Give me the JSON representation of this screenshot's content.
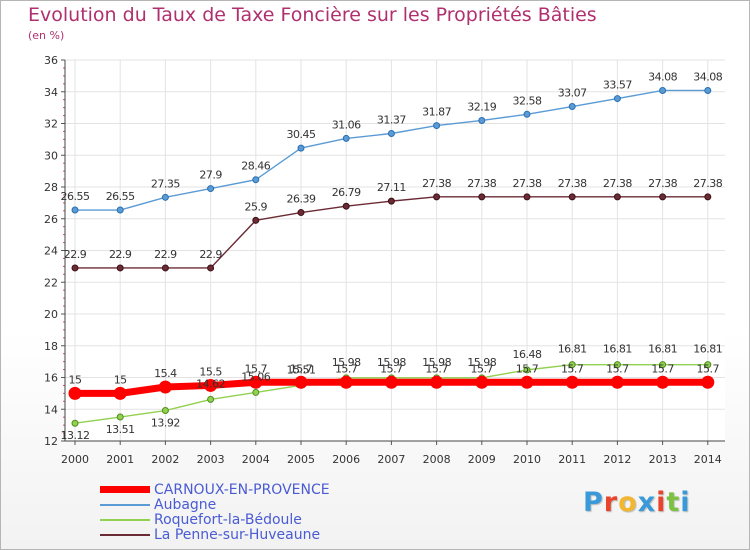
{
  "header": {
    "title": "Evolution du Taux de Taxe Foncière sur les Propriétés Bâties",
    "unit": "(en %)"
  },
  "logo": {
    "text": "Proxiti",
    "letter_colors": [
      "#3a9ad9",
      "#e8452c",
      "#f2b630",
      "#3a9ad9",
      "#e8452c",
      "#7bc142",
      "#3a9ad9"
    ]
  },
  "chart_data": {
    "type": "line",
    "x": [
      "2000",
      "2001",
      "2002",
      "2003",
      "2004",
      "2005",
      "2006",
      "2007",
      "2008",
      "2009",
      "2010",
      "2011",
      "2012",
      "2013",
      "2014"
    ],
    "ylim": [
      12,
      36
    ],
    "yticks": [
      "12",
      "14",
      "16",
      "18",
      "20",
      "22",
      "24",
      "26",
      "28",
      "30",
      "32",
      "34",
      "36"
    ],
    "grid": true,
    "legend_position": "bottom-left",
    "series": [
      {
        "name": "CARNOUX-EN-PROVENCE",
        "color": "#ff0000",
        "values": [
          15,
          15,
          15.4,
          15.5,
          15.7,
          15.7,
          15.7,
          15.7,
          15.7,
          15.7,
          15.7,
          15.7,
          15.7,
          15.7,
          15.7
        ],
        "labels": [
          "15",
          "15",
          "15.4",
          "15.5",
          "15.7",
          "15.7",
          "15.7",
          "15.7",
          "15.7",
          "15.7",
          "15.7",
          "15.7",
          "15.7",
          "15.7",
          "15.7"
        ]
      },
      {
        "name": "Aubagne",
        "color": "#5b9bd5",
        "values": [
          26.55,
          26.55,
          27.35,
          27.9,
          28.46,
          30.45,
          31.06,
          31.37,
          31.87,
          32.19,
          32.58,
          33.07,
          33.57,
          34.08,
          34.08
        ],
        "labels": [
          "26.55",
          "26.55",
          "27.35",
          "27.9",
          "28.46",
          "30.45",
          "31.06",
          "31.37",
          "31.87",
          "32.19",
          "32.58",
          "33.07",
          "33.57",
          "34.08",
          "34.08"
        ]
      },
      {
        "name": "Roquefort-la-Bédoule",
        "color": "#92d050",
        "values": [
          13.12,
          13.51,
          13.92,
          14.62,
          15.06,
          15.51,
          15.98,
          15.98,
          15.98,
          15.98,
          16.48,
          16.81,
          16.81,
          16.81,
          16.81
        ],
        "labels": [
          "13.12",
          "13.51",
          "13.92",
          "14.62",
          "15.06",
          "15.51",
          "15.98",
          "15.98",
          "15.98",
          "15.98",
          "16.48",
          "16.81",
          "16.81",
          "16.81",
          "16.81"
        ]
      },
      {
        "name": "La Penne-sur-Huveaune",
        "color": "#6b2b35",
        "values": [
          22.9,
          22.9,
          22.9,
          22.9,
          25.9,
          26.39,
          26.79,
          27.11,
          27.38,
          27.38,
          27.38,
          27.38,
          27.38,
          27.38,
          27.38
        ],
        "labels": [
          "22.9",
          "22.9",
          "22.9",
          "22.9",
          "25.9",
          "26.39",
          "26.79",
          "27.11",
          "27.38",
          "27.38",
          "27.38",
          "27.38",
          "27.38",
          "27.38",
          "27.38"
        ]
      }
    ]
  }
}
